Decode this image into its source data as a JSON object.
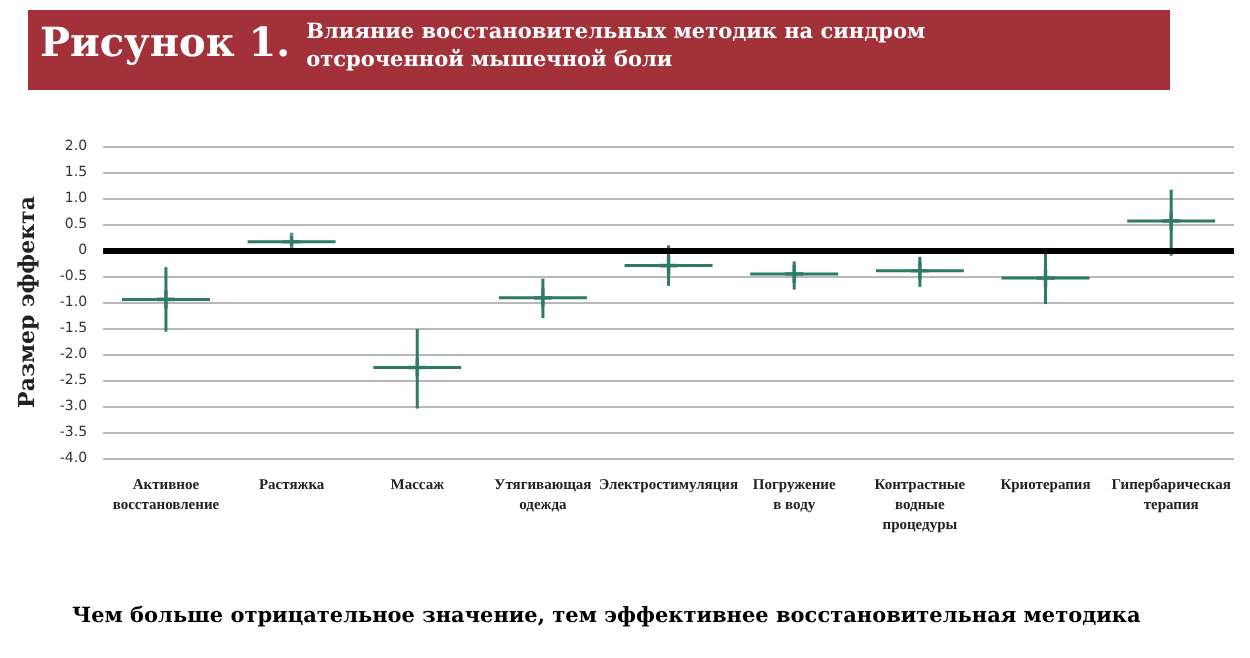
{
  "chart_data": {
    "type": "scatter",
    "title": "Рисунок 1.",
    "subtitle": "Влияние восстановительных методик на синдром отсроченной мышечной боли",
    "ylabel": "Размер эффекта",
    "categories": [
      "Активное восстановление",
      "Растяжка",
      "Массаж",
      "Утягивающая одежда",
      "Электростимуляция",
      "Погружение в воду",
      "Контрастные водные процедуры",
      "Криотерапия",
      "Гипербарическая терапия"
    ],
    "values": [
      -0.95,
      0.16,
      -2.26,
      -0.92,
      -0.3,
      -0.46,
      -0.4,
      -0.54,
      0.56
    ],
    "errors": [
      [
        -1.57,
        -0.33
      ],
      [
        0.08,
        0.26
      ],
      [
        -3.05,
        -1.52
      ],
      [
        -1.31,
        -0.55
      ],
      [
        -0.69,
        0.09
      ],
      [
        -0.76,
        -0.22
      ],
      [
        -0.71,
        -0.13
      ],
      [
        -1.04,
        -0.05
      ],
      [
        -0.11,
        1.16
      ]
    ],
    "color": "#2e7a68",
    "ylim": [
      -4,
      2
    ],
    "yticks": [
      {
        "value": 2,
        "label": "2.0"
      },
      1.5,
      {
        "value": 1,
        "label": "1.0"
      },
      0.5,
      0,
      -0.5,
      {
        "value": -1,
        "label": "-1.0"
      },
      -1.5,
      {
        "value": -2,
        "label": "-2.0"
      },
      -2.5,
      {
        "value": -3,
        "label": "-3.0"
      },
      -3.5,
      {
        "value": -4,
        "label": "-4.0"
      }
    ],
    "grid": "y",
    "marker": "cross",
    "ref_lines": [
      {
        "axis": "y",
        "value": 0,
        "color": "#000000"
      }
    ],
    "annotations": [
      "Чем больше отрицательное значение, тем эффективнее восстановительная методика"
    ]
  }
}
